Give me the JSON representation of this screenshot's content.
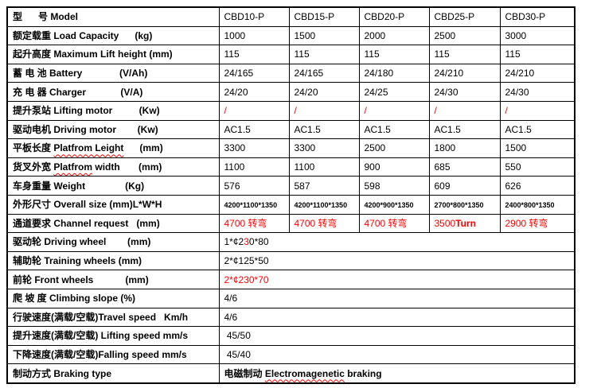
{
  "colors": {
    "accent_red": "#ff0000",
    "border": "#000000",
    "text": "#000000",
    "background": "#ffffff"
  },
  "table": {
    "name": "forklift-spec-table",
    "model_columns": [
      "CBD10-P",
      "CBD15-P",
      "CBD20-P",
      "CBD25-P",
      "CBD30-P"
    ],
    "rows": [
      {
        "name": "model",
        "label": [
          {
            "t": "型      号 Model",
            "b": 1
          }
        ],
        "values": [
          [
            {
              "t": "CBD10-P"
            }
          ],
          [
            {
              "t": "CBD15-P"
            }
          ],
          [
            {
              "t": "CBD20-P"
            }
          ],
          [
            {
              "t": "CBD25-P"
            }
          ],
          [
            {
              "t": "CBD30-P"
            }
          ]
        ]
      },
      {
        "name": "load-capacity",
        "label": [
          {
            "t": "额定载重 Load Capacity      (kg)",
            "b": 1
          }
        ],
        "values": [
          [
            {
              "t": "1000"
            }
          ],
          [
            {
              "t": "1500"
            }
          ],
          [
            {
              "t": "2000"
            }
          ],
          [
            {
              "t": "2500"
            }
          ],
          [
            {
              "t": "3000"
            }
          ]
        ]
      },
      {
        "name": "max-lift-height",
        "label": [
          {
            "t": "起升高度 Maximum Lift height (mm)",
            "b": 1
          }
        ],
        "values": [
          [
            {
              "t": "115"
            }
          ],
          [
            {
              "t": "115"
            }
          ],
          [
            {
              "t": "115"
            }
          ],
          [
            {
              "t": "115"
            }
          ],
          [
            {
              "t": "115"
            }
          ]
        ]
      },
      {
        "name": "battery",
        "label": [
          {
            "t": "蓄 电 池 Battery              (V/Ah)",
            "b": 1
          }
        ],
        "values": [
          [
            {
              "t": "24/165"
            }
          ],
          [
            {
              "t": "24/165"
            }
          ],
          [
            {
              "t": "24/180"
            }
          ],
          [
            {
              "t": "24/210"
            }
          ],
          [
            {
              "t": "24/210"
            }
          ]
        ]
      },
      {
        "name": "charger",
        "label": [
          {
            "t": "充 电 器 Charger             (V/A)",
            "b": 1
          }
        ],
        "values": [
          [
            {
              "t": "24/20"
            }
          ],
          [
            {
              "t": "24/20"
            }
          ],
          [
            {
              "t": "24/25"
            }
          ],
          [
            {
              "t": "24/30"
            }
          ],
          [
            {
              "t": "24/30"
            }
          ]
        ]
      },
      {
        "name": "lifting-motor",
        "label": [
          {
            "t": "提升泵站 Lifting motor          (Kw)",
            "b": 1
          }
        ],
        "values": [
          [
            {
              "t": "/",
              "r": 1
            }
          ],
          [
            {
              "t": "/",
              "r": 1
            }
          ],
          [
            {
              "t": "/",
              "r": 1
            }
          ],
          [
            {
              "t": "/",
              "r": 1
            }
          ],
          [
            {
              "t": "/",
              "r": 1
            }
          ]
        ]
      },
      {
        "name": "driving-motor",
        "label": [
          {
            "t": "驱动电机 Driving motor        (Kw)",
            "b": 1
          }
        ],
        "values": [
          [
            {
              "t": "AC1.5"
            }
          ],
          [
            {
              "t": "AC1.5"
            }
          ],
          [
            {
              "t": "AC1.5"
            }
          ],
          [
            {
              "t": "AC1.5"
            }
          ],
          [
            {
              "t": "AC1.5"
            }
          ]
        ]
      },
      {
        "name": "platform-length",
        "label": [
          {
            "t": "平板长度 ",
            "b": 1
          },
          {
            "t": "Platfrom Leight",
            "b": 1,
            "w": 1
          },
          {
            "t": "      (mm)",
            "b": 1
          }
        ],
        "values": [
          [
            {
              "t": "3300"
            }
          ],
          [
            {
              "t": "3300"
            }
          ],
          [
            {
              "t": "2500"
            }
          ],
          [
            {
              "t": "1800"
            }
          ],
          [
            {
              "t": "1500"
            }
          ]
        ]
      },
      {
        "name": "platform-width",
        "label": [
          {
            "t": "货叉外宽 ",
            "b": 1
          },
          {
            "t": "Platfrom",
            "b": 1,
            "w": 1
          },
          {
            "t": " width",
            "b": 1
          },
          {
            "t": "       (mm)",
            "b": 1
          }
        ],
        "values": [
          [
            {
              "t": "1100"
            }
          ],
          [
            {
              "t": "1100"
            }
          ],
          [
            {
              "t": "900"
            }
          ],
          [
            {
              "t": "685"
            }
          ],
          [
            {
              "t": "550"
            }
          ]
        ]
      },
      {
        "name": "weight",
        "label": [
          {
            "t": "车身重量 Weight               (Kg)",
            "b": 1
          }
        ],
        "values": [
          [
            {
              "t": "576"
            }
          ],
          [
            {
              "t": "587"
            }
          ],
          [
            {
              "t": "598"
            }
          ],
          [
            {
              "t": "609"
            }
          ],
          [
            {
              "t": "626"
            }
          ]
        ]
      },
      {
        "name": "overall-size",
        "label": [
          {
            "t": "外形尺寸 Overall size (mm)L*W*H",
            "b": 1
          }
        ],
        "values": [
          [
            {
              "t": "4200*1100*1350",
              "b": 1,
              "s": 1
            }
          ],
          [
            {
              "t": "4200*1100*1350",
              "b": 1,
              "s": 1
            }
          ],
          [
            {
              "t": "4200*900*1350",
              "b": 1,
              "s": 1
            }
          ],
          [
            {
              "t": "2700*800*1350",
              "b": 1,
              "s": 1
            }
          ],
          [
            {
              "t": "2400*800*1350",
              "b": 1,
              "s": 1
            }
          ]
        ]
      },
      {
        "name": "channel-request",
        "label": [
          {
            "t": "通道要求 Channel request   (mm)",
            "b": 1
          }
        ],
        "values": [
          [
            {
              "t": "4700 转弯",
              "r": 1
            }
          ],
          [
            {
              "t": "4700 转弯",
              "r": 1
            }
          ],
          [
            {
              "t": "4700 转弯",
              "r": 1
            }
          ],
          [
            {
              "t": "3500",
              "r": 1
            },
            {
              "t": "Turn",
              "r": 1,
              "b": 1
            }
          ],
          [
            {
              "t": "2900 转弯",
              "r": 1
            }
          ]
        ]
      },
      {
        "name": "driving-wheel",
        "merged": true,
        "label": [
          {
            "t": "驱动轮 Driving wheel        (mm)",
            "b": 1
          }
        ],
        "values": [
          [
            {
              "t": "1*¢2"
            },
            {
              "t": "3",
              "r": 1
            },
            {
              "t": "0*80"
            }
          ]
        ]
      },
      {
        "name": "training-wheels",
        "merged": true,
        "label": [
          {
            "t": "辅助轮 Training wheels (mm)",
            "b": 1
          }
        ],
        "values": [
          [
            {
              "t": "2*¢125*50"
            }
          ]
        ]
      },
      {
        "name": "front-wheels",
        "merged": true,
        "label": [
          {
            "t": "前轮 Front wheels            (mm)",
            "b": 1
          }
        ],
        "values": [
          [
            {
              "t": "2*¢230*70",
              "r": 1
            }
          ]
        ]
      },
      {
        "name": "climbing-slope",
        "merged": true,
        "label": [
          {
            "t": "爬 坡 度 Climbing slope (%)",
            "b": 1
          }
        ],
        "values": [
          [
            {
              "t": "4/6"
            }
          ]
        ]
      },
      {
        "name": "travel-speed",
        "merged": true,
        "label": [
          {
            "t": "行驶速度(满载/空载)Travel speed "
          },
          {
            "t": "  Km/h",
            "b": 1
          }
        ],
        "values": [
          [
            {
              "t": "4/6"
            }
          ]
        ]
      },
      {
        "name": "lifting-speed",
        "merged": true,
        "label": [
          {
            "t": "提升速度(满载/空载) Lifting speed "
          },
          {
            "t": "mm/s",
            "b": 1
          }
        ],
        "values": [
          [
            {
              "t": " 45/50"
            }
          ]
        ]
      },
      {
        "name": "falling-speed",
        "merged": true,
        "label": [
          {
            "t": "下降速度(满载/空载)Falling speed "
          },
          {
            "t": "mm/s",
            "b": 1
          }
        ],
        "values": [
          [
            {
              "t": " 45/40"
            }
          ]
        ]
      },
      {
        "name": "braking-type",
        "merged": true,
        "label": [
          {
            "t": "制动方式 Braking type",
            "b": 1
          }
        ],
        "values": [
          [
            {
              "t": "电磁制动 ",
              "b": 1
            },
            {
              "t": "Electromagenetic",
              "b": 1,
              "w": 1
            },
            {
              "t": " braking",
              "b": 1
            }
          ]
        ]
      }
    ]
  }
}
